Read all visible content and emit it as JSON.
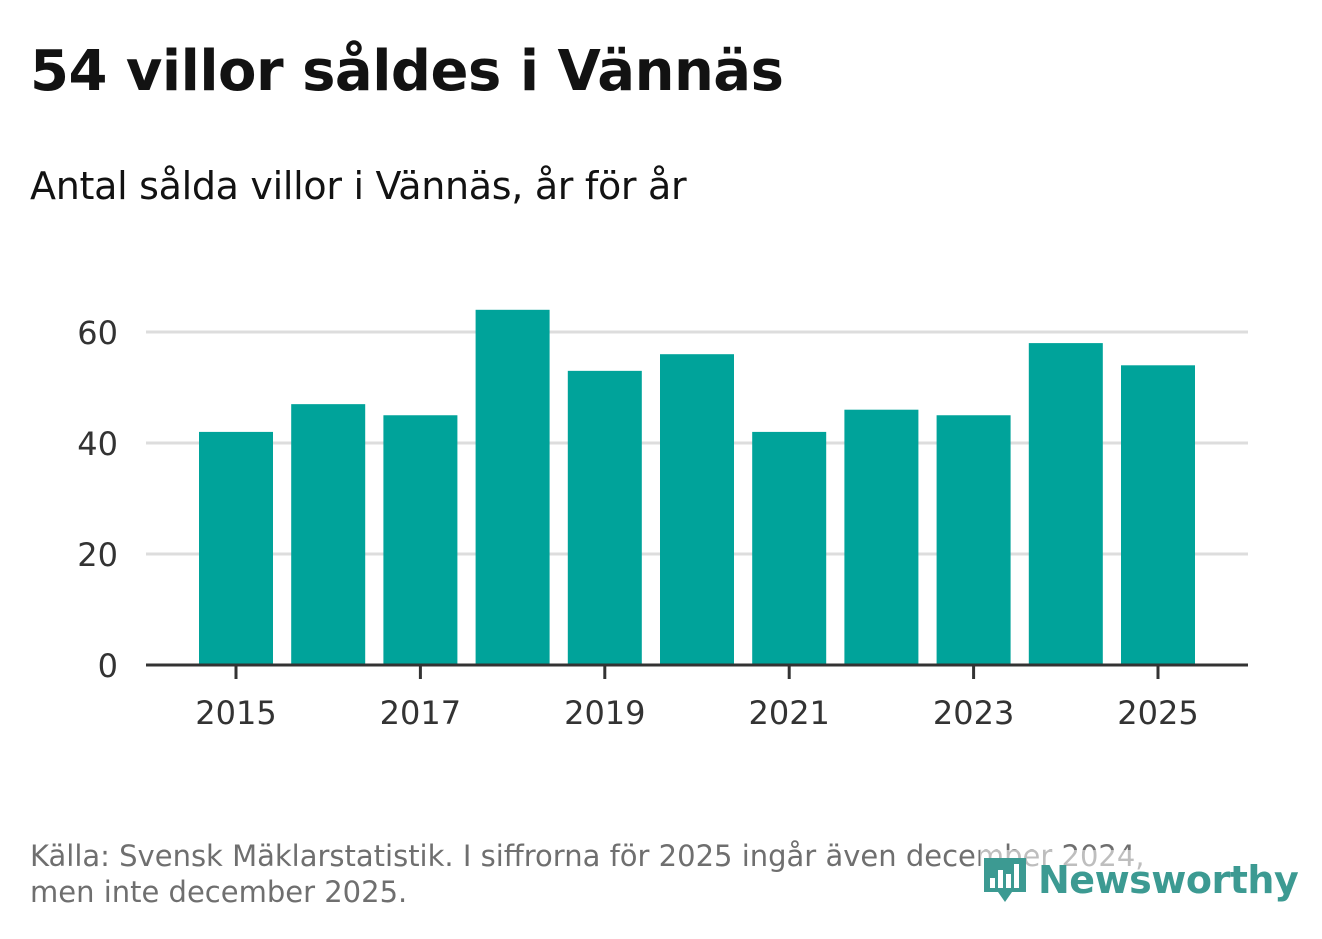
{
  "header": {
    "title": "54 villor såldes i Vännäs",
    "subtitle": "Antal sålda villor i Vännäs, år för år"
  },
  "footer": {
    "source_line1": "Källa: Svensk Mäklarstatistik. I siffrorna för 2025 ingår även december 2024,",
    "source_line2": "men inte december 2025."
  },
  "brand": {
    "name": "Newsworthy",
    "icon": "newsworthy-bar-chart-icon",
    "color": "#3c9a92"
  },
  "colors": {
    "bar": "#00a39a",
    "grid": "#dddddd",
    "axis": "#333333"
  },
  "chart_data": {
    "type": "bar",
    "title": "54 villor såldes i Vännäs",
    "subtitle": "Antal sålda villor i Vännäs, år för år",
    "xlabel": "",
    "ylabel": "",
    "categories": [
      2015,
      2016,
      2017,
      2018,
      2019,
      2020,
      2021,
      2022,
      2023,
      2024,
      2025
    ],
    "values": [
      42,
      47,
      45,
      64,
      53,
      56,
      42,
      46,
      45,
      58,
      54
    ],
    "x_tick_labels": [
      "2015",
      "2017",
      "2019",
      "2021",
      "2023",
      "2025"
    ],
    "y_ticks": [
      0,
      20,
      40,
      60
    ],
    "ylim": [
      0,
      60
    ],
    "grid": true,
    "legend": "none"
  }
}
